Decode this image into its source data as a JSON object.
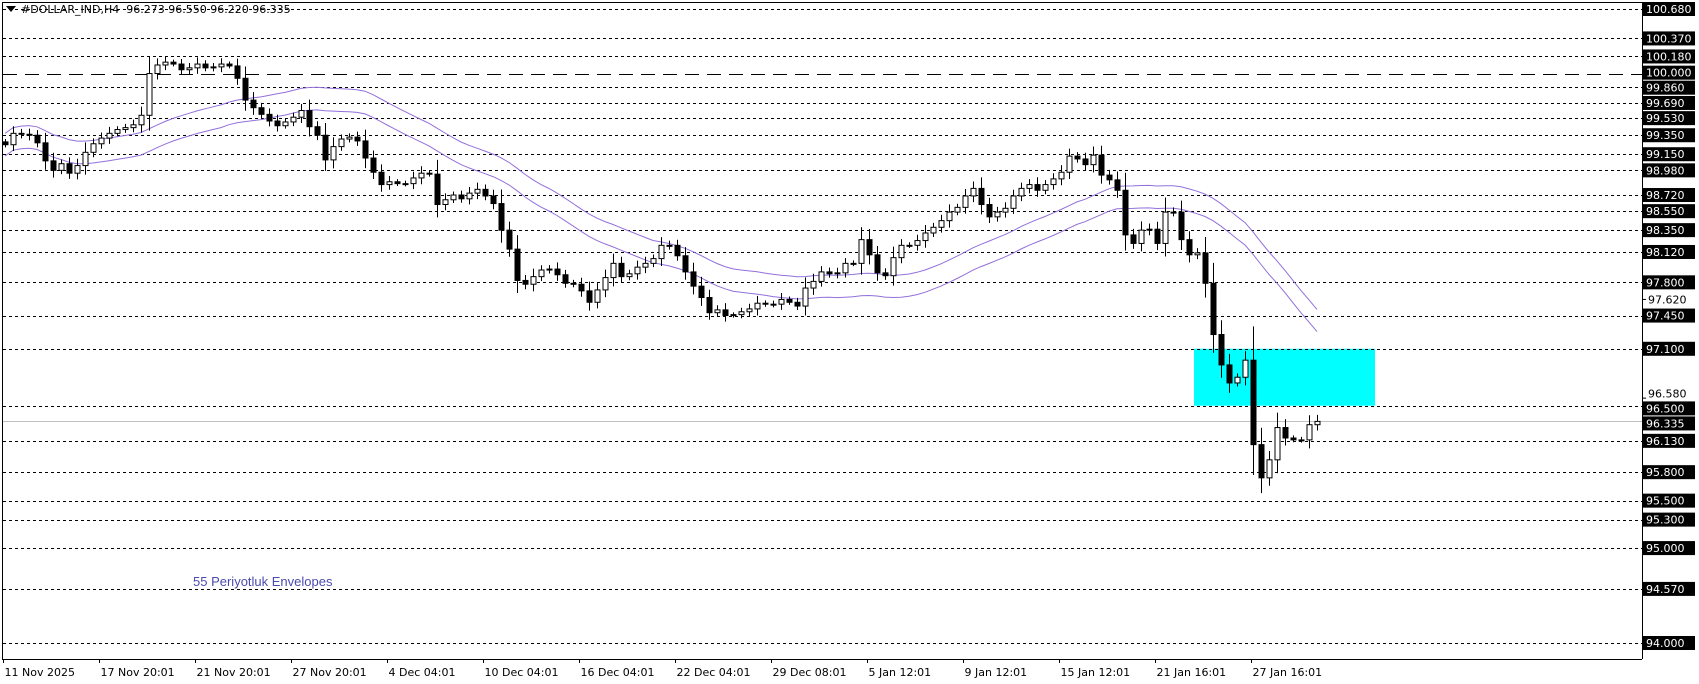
{
  "header": {
    "symbol": "#DOLLAR_IND,H4",
    "ohlc": "96.273 96.550 96.220 96.335"
  },
  "indicator_label": "55 Periyotluk Envelopes",
  "colors": {
    "envelope": "#9370db",
    "zone": "#00ffff",
    "bull_body": "#ffffff",
    "bear_body": "#000000",
    "current_price_line": "#c0c0c0",
    "axis_label_bg": "#000000",
    "axis_label_text": "#ffffff"
  },
  "chart_data": {
    "type": "candlestick",
    "title": "#DOLLAR_IND,H4",
    "timeframe": "H4",
    "ylim": [
      94.0,
      100.68
    ],
    "grid": false,
    "x_tick_labels": [
      "11 Nov 2025",
      "17 Nov 20:01",
      "21 Nov 20:01",
      "27 Nov 20:01",
      "4 Dec 04:01",
      "10 Dec 04:01",
      "16 Dec 04:01",
      "22 Dec 04:01",
      "29 Dec 08:01",
      "5 Jan 12:01",
      "9 Jan 12:01",
      "15 Jan 12:01",
      "21 Jan 16:01",
      "27 Jan 16:01"
    ],
    "closes": [
      99.25,
      99.37,
      99.36,
      99.35,
      99.27,
      99.08,
      98.98,
      99.05,
      98.95,
      99.03,
      99.17,
      99.26,
      99.32,
      99.37,
      99.41,
      99.43,
      99.46,
      99.56,
      100.0,
      100.09,
      100.12,
      100.1,
      100.04,
      100.06,
      100.1,
      100.06,
      100.07,
      100.1,
      100.08,
      99.95,
      99.72,
      99.64,
      99.57,
      99.5,
      99.45,
      99.49,
      99.54,
      99.61,
      99.44,
      99.35,
      99.09,
      99.23,
      99.31,
      99.33,
      99.29,
      99.11,
      98.96,
      98.83,
      98.86,
      98.84,
      98.84,
      98.9,
      98.95,
      98.94,
      98.62,
      98.67,
      98.72,
      98.68,
      98.74,
      98.78,
      98.71,
      98.63,
      98.35,
      98.15,
      97.82,
      97.78,
      97.86,
      97.93,
      97.94,
      97.88,
      97.79,
      97.78,
      97.71,
      97.59,
      97.72,
      97.85,
      98.0,
      97.86,
      97.89,
      97.96,
      98.0,
      98.05,
      98.19,
      98.19,
      98.08,
      97.91,
      97.76,
      97.64,
      97.48,
      97.51,
      97.45,
      97.46,
      97.49,
      97.52,
      97.58,
      97.57,
      97.57,
      97.62,
      97.59,
      97.55,
      97.74,
      97.81,
      97.91,
      97.89,
      97.9,
      98.0,
      98.0,
      98.25,
      98.09,
      97.9,
      97.87,
      98.06,
      98.19,
      98.19,
      98.24,
      98.32,
      98.38,
      98.45,
      98.54,
      98.59,
      98.71,
      98.79,
      98.62,
      98.49,
      98.54,
      98.58,
      98.71,
      98.79,
      98.83,
      98.77,
      98.83,
      98.89,
      98.96,
      99.13,
      99.1,
      99.04,
      99.14,
      98.93,
      98.88,
      98.77,
      98.3,
      98.21,
      98.35,
      98.36,
      98.21,
      98.54,
      98.54,
      98.25,
      98.09,
      98.11,
      97.79,
      97.25,
      96.93,
      96.74,
      96.8,
      96.98,
      96.09,
      95.74,
      95.93,
      96.27,
      96.16,
      96.14,
      96.14,
      96.3,
      96.335
    ],
    "levels": [
      {
        "label": "100.680",
        "value": 100.68,
        "style": "dash"
      },
      {
        "label": "100.370",
        "value": 100.37,
        "style": "dash"
      },
      {
        "label": "100.180",
        "value": 100.18,
        "style": "dash"
      },
      {
        "label": "100.000",
        "value": 100.0,
        "style": "longdash"
      },
      {
        "label": "99.860",
        "value": 99.86,
        "style": "dash"
      },
      {
        "label": "99.690",
        "value": 99.69,
        "style": "dash"
      },
      {
        "label": "99.530",
        "value": 99.53,
        "style": "dash"
      },
      {
        "label": "99.350",
        "value": 99.35,
        "style": "dash"
      },
      {
        "label": "99.150",
        "value": 99.15,
        "style": "dash"
      },
      {
        "label": "98.980",
        "value": 98.98,
        "style": "dash"
      },
      {
        "label": "98.720",
        "value": 98.72,
        "style": "dash"
      },
      {
        "label": "98.550",
        "value": 98.55,
        "style": "dash"
      },
      {
        "label": "98.350",
        "value": 98.35,
        "style": "dash"
      },
      {
        "label": "98.120",
        "value": 98.12,
        "style": "dash"
      },
      {
        "label": "97.800",
        "value": 97.8,
        "style": "dash"
      },
      {
        "label": "97.450",
        "value": 97.45,
        "style": "dash"
      },
      {
        "label": "97.100",
        "value": 97.1,
        "style": "dash"
      },
      {
        "label": "96.500",
        "value": 96.5,
        "style": "dash"
      },
      {
        "label": "96.130",
        "value": 96.13,
        "style": "dash"
      },
      {
        "label": "95.800",
        "value": 95.8,
        "style": "dash"
      },
      {
        "label": "95.500",
        "value": 95.5,
        "style": "dash"
      },
      {
        "label": "95.300",
        "value": 95.3,
        "style": "dash"
      },
      {
        "label": "95.000",
        "value": 95.0,
        "style": "dash"
      },
      {
        "label": "94.570",
        "value": 94.57,
        "style": "dash"
      },
      {
        "label": "94.000",
        "value": 94.0,
        "style": "dash"
      }
    ],
    "scale_labels": [
      {
        "label": "97.620",
        "value": 97.62
      },
      {
        "label": "96.580",
        "value": 96.58
      }
    ],
    "current_price": {
      "label": "96.335",
      "value": 96.335
    },
    "zone": {
      "high": 97.1,
      "low": 96.5
    },
    "envelopes": {
      "period": 55,
      "deviation_pct": 0.12
    }
  }
}
